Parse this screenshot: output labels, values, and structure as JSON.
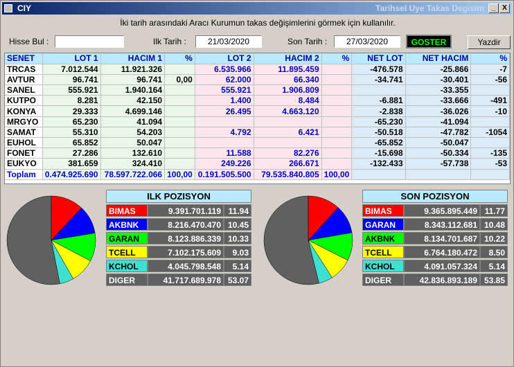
{
  "window": {
    "title": "CIY",
    "right_title": "Tarihsel Uye Takas Degisim",
    "minimize": "_",
    "close": "X"
  },
  "hint": "İki tarih arasındaki  Aracı Kurumun takas değişimlerini görmek için kullanılır.",
  "form": {
    "search_label": "Hisse Bul :",
    "search_value": "",
    "start_label": "Ilk Tarih :",
    "start_value": "21/03/2020",
    "end_label": "Son Tarih :",
    "end_value": "27/03/2020",
    "goster": "GOSTER",
    "yazdir": "Yazdir"
  },
  "table": {
    "headers": [
      "SENET",
      "LOT 1",
      "HACIM 1",
      "%",
      "LOT 2",
      "HACIM 2",
      "%",
      "NET LOT",
      "NET HACIM",
      "%"
    ],
    "rows": [
      [
        "TRCAS",
        "7.012.544",
        "11.921.326",
        "",
        "6.535.966",
        "11.895.459",
        "",
        "-476.578",
        "-25.866",
        "-7"
      ],
      [
        "AVTUR",
        "96.741",
        "96.741",
        "0,00",
        "62.000",
        "66.340",
        "",
        "-34.741",
        "-30.401",
        "-56"
      ],
      [
        "SANEL",
        "555.921",
        "1.940.164",
        "",
        "555.921",
        "1.906.809",
        "",
        "",
        "-33.355",
        ""
      ],
      [
        "KUTPO",
        "8.281",
        "42.150",
        "",
        "1.400",
        "8.484",
        "",
        "-6.881",
        "-33.666",
        "-491"
      ],
      [
        "KONYA",
        "29.333",
        "4.699.146",
        "",
        "26.495",
        "4.663.120",
        "",
        "-2.838",
        "-36.026",
        "-10"
      ],
      [
        "MRGYO",
        "65.230",
        "41.094",
        "",
        "",
        "",
        "",
        "-65.230",
        "-41.094",
        ""
      ],
      [
        "SAMAT",
        "55.310",
        "54.203",
        "",
        "4.792",
        "6.421",
        "",
        "-50.518",
        "-47.782",
        "-1054"
      ],
      [
        "EUHOL",
        "65.852",
        "50.047",
        "",
        "",
        "",
        "",
        "-65.852",
        "-50.047",
        ""
      ],
      [
        "FONET",
        "27.286",
        "132.610",
        "",
        "11.588",
        "82.276",
        "",
        "-15.698",
        "-50.334",
        "-135"
      ],
      [
        "EUKYO",
        "381.659",
        "324.410",
        "",
        "249.226",
        "266.671",
        "",
        "-132.433",
        "-57.738",
        "-53"
      ],
      [
        "Toplam",
        "0.474.925.690",
        "78.597.722.066",
        "100,00",
        "0.191.505.500",
        "79.535.840.805",
        "100,00",
        "",
        "",
        ""
      ]
    ]
  },
  "ilk": {
    "title": "ILK POZISYON",
    "rows": [
      {
        "name": "BIMAS",
        "value": "9.391.701.119",
        "pct": "11.94",
        "bg": "#ff0000",
        "fg": "#ffffff"
      },
      {
        "name": "AKBNK",
        "value": "8.216.470.470",
        "pct": "10.45",
        "bg": "#0000ff",
        "fg": "#ffffff"
      },
      {
        "name": "GARAN",
        "value": "8.123.886.339",
        "pct": "10.33",
        "bg": "#00ff00",
        "fg": "#000000"
      },
      {
        "name": "TCELL",
        "value": "7.102.175.609",
        "pct": "9.03",
        "bg": "#ffff00",
        "fg": "#000000"
      },
      {
        "name": "KCHOL",
        "value": "4.045.798.548",
        "pct": "5.14",
        "bg": "#40e0d0",
        "fg": "#000000"
      },
      {
        "name": "DIGER",
        "value": "41.717.689.978",
        "pct": "53.07",
        "bg": "#606060",
        "fg": "#ffffff"
      }
    ]
  },
  "son": {
    "title": "SON POZISYON",
    "rows": [
      {
        "name": "BIMAS",
        "value": "9.365.895.449",
        "pct": "11.77",
        "bg": "#ff0000",
        "fg": "#ffffff"
      },
      {
        "name": "GARAN",
        "value": "8.343.112.681",
        "pct": "10.48",
        "bg": "#0000ff",
        "fg": "#ffffff"
      },
      {
        "name": "AKBNK",
        "value": "8.134.701.687",
        "pct": "10.22",
        "bg": "#00ff00",
        "fg": "#000000"
      },
      {
        "name": "TCELL",
        "value": "6.764.180.472",
        "pct": "8.50",
        "bg": "#ffff00",
        "fg": "#000000"
      },
      {
        "name": "KCHOL",
        "value": "4.091.057.324",
        "pct": "5.14",
        "bg": "#40e0d0",
        "fg": "#000000"
      },
      {
        "name": "DIGER",
        "value": "42.836.893.189",
        "pct": "53.85",
        "bg": "#606060",
        "fg": "#ffffff"
      }
    ]
  }
}
